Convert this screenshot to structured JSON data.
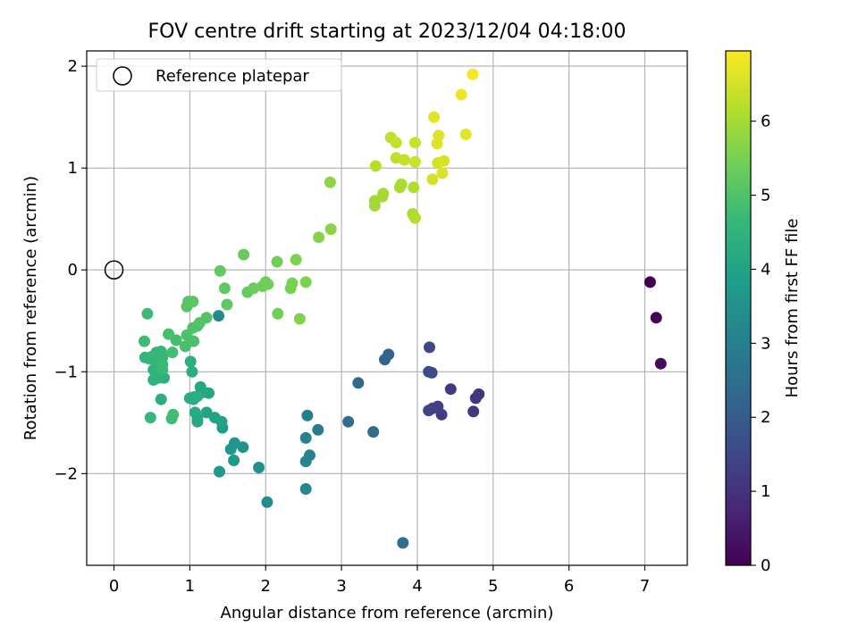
{
  "chart_data": {
    "type": "scatter",
    "title": "FOV centre drift starting at 2023/12/04 04:18:00",
    "xlabel": "Angular distance from reference (arcmin)",
    "ylabel": "Rotation from reference (arcmin)",
    "xlim": [
      -0.36,
      7.56
    ],
    "ylim": [
      -2.9,
      2.15
    ],
    "xticks": [
      0,
      1,
      2,
      3,
      4,
      5,
      6,
      7
    ],
    "yticks": [
      -2,
      -1,
      0,
      1,
      2
    ],
    "grid": true,
    "legend": {
      "placement": "top-left",
      "entries": [
        "Reference platepar"
      ]
    },
    "reference_point": {
      "x": 0,
      "y": 0,
      "label": "Reference platepar",
      "marker": "hollow-circle",
      "color": "#000000"
    },
    "colorbar": {
      "label": "Hours from first FF file",
      "colormap": "viridis",
      "range": [
        0,
        6.95
      ],
      "ticks": [
        0,
        1,
        2,
        3,
        4,
        5,
        6
      ],
      "stops": [
        "#440154",
        "#482878",
        "#3e4989",
        "#31688e",
        "#26828e",
        "#1f9e89",
        "#35b779",
        "#6ece58",
        "#b5de2b",
        "#fde725"
      ]
    },
    "series": [
      {
        "points": [
          [
            7.07,
            -0.12,
            0.0
          ],
          [
            7.15,
            -0.47,
            0.1
          ],
          [
            7.21,
            -0.92,
            0.2
          ],
          [
            4.81,
            -1.22,
            1.05
          ],
          [
            4.77,
            -1.26,
            1.1
          ],
          [
            4.74,
            -1.39,
            1.15
          ],
          [
            4.44,
            -1.17,
            1.2
          ],
          [
            4.32,
            -1.42,
            1.25
          ],
          [
            4.27,
            -1.34,
            1.3
          ],
          [
            4.2,
            -1.36,
            1.35
          ],
          [
            4.15,
            -1.38,
            1.4
          ],
          [
            4.16,
            -0.76,
            1.5
          ],
          [
            4.15,
            -1.0,
            1.55
          ],
          [
            4.19,
            -1.01,
            1.6
          ],
          [
            3.62,
            -0.83,
            2.2
          ],
          [
            3.57,
            -0.88,
            2.25
          ],
          [
            3.22,
            -1.11,
            2.4
          ],
          [
            3.42,
            -1.59,
            2.45
          ],
          [
            3.09,
            -1.49,
            2.5
          ],
          [
            3.81,
            -2.68,
            2.55
          ],
          [
            2.69,
            -1.57,
            2.9
          ],
          [
            2.55,
            -1.43,
            3.0
          ],
          [
            2.53,
            -1.65,
            3.05
          ],
          [
            2.58,
            -1.82,
            3.1
          ],
          [
            2.53,
            -1.88,
            3.15
          ],
          [
            2.53,
            -2.15,
            3.2
          ],
          [
            2.02,
            -2.28,
            3.35
          ],
          [
            1.91,
            -1.94,
            3.45
          ],
          [
            1.7,
            -1.74,
            3.55
          ],
          [
            1.59,
            -1.7,
            3.6
          ],
          [
            1.54,
            -1.76,
            3.65
          ],
          [
            1.58,
            -1.87,
            3.7
          ],
          [
            1.39,
            -1.98,
            3.75
          ],
          [
            1.38,
            -0.45,
            3.3
          ],
          [
            1.43,
            -1.55,
            3.9
          ],
          [
            1.42,
            -1.49,
            3.95
          ],
          [
            1.33,
            -1.45,
            4.0
          ],
          [
            1.22,
            -1.4,
            4.05
          ],
          [
            1.25,
            -1.21,
            4.05
          ],
          [
            1.18,
            -1.2,
            4.1
          ],
          [
            1.14,
            -1.15,
            4.1
          ],
          [
            1.1,
            -1.46,
            4.15
          ],
          [
            1.1,
            -1.49,
            4.15
          ],
          [
            1.07,
            -1.4,
            4.2
          ],
          [
            1.05,
            -1.27,
            4.2
          ],
          [
            1.0,
            -1.26,
            4.25
          ],
          [
            1.05,
            -1.25,
            4.25
          ],
          [
            1.1,
            -1.24,
            4.3
          ],
          [
            1.03,
            -1.0,
            4.3
          ],
          [
            1.01,
            -0.9,
            4.35
          ],
          [
            0.62,
            -1.27,
            4.35
          ],
          [
            0.66,
            -1.06,
            4.4
          ],
          [
            0.59,
            -1.06,
            4.45
          ],
          [
            0.52,
            -1.08,
            4.45
          ],
          [
            0.52,
            -0.98,
            4.5
          ],
          [
            0.55,
            -0.9,
            4.5
          ],
          [
            0.46,
            -0.87,
            4.55
          ],
          [
            0.41,
            -0.86,
            4.55
          ],
          [
            0.5,
            -0.85,
            4.6
          ],
          [
            0.56,
            -0.81,
            4.6
          ],
          [
            0.62,
            -0.8,
            4.65
          ],
          [
            0.64,
            -0.86,
            4.65
          ],
          [
            0.64,
            -0.93,
            4.7
          ],
          [
            0.64,
            -0.98,
            4.7
          ],
          [
            0.48,
            -1.45,
            4.6
          ],
          [
            0.4,
            -0.7,
            4.75
          ],
          [
            0.44,
            -0.43,
            4.75
          ],
          [
            0.78,
            -1.42,
            4.8
          ],
          [
            0.76,
            -1.46,
            4.8
          ],
          [
            0.77,
            -0.81,
            4.85
          ],
          [
            0.82,
            -0.69,
            4.85
          ],
          [
            0.72,
            -0.63,
            4.9
          ],
          [
            0.94,
            -0.75,
            4.9
          ],
          [
            0.96,
            -0.64,
            4.95
          ],
          [
            1.05,
            -0.7,
            4.95
          ],
          [
            1.04,
            -0.57,
            5.0
          ],
          [
            1.1,
            -0.55,
            5.0
          ],
          [
            1.13,
            -0.52,
            5.05
          ],
          [
            1.22,
            -0.47,
            5.05
          ],
          [
            0.98,
            -0.31,
            5.1
          ],
          [
            0.96,
            -0.36,
            5.1
          ],
          [
            1.04,
            -0.31,
            5.15
          ],
          [
            1.46,
            -0.18,
            5.2
          ],
          [
            1.49,
            -0.34,
            5.2
          ],
          [
            1.4,
            -0.01,
            5.25
          ],
          [
            1.71,
            0.15,
            5.3
          ],
          [
            1.76,
            -0.22,
            5.3
          ],
          [
            1.84,
            -0.18,
            5.35
          ],
          [
            1.96,
            -0.16,
            5.35
          ],
          [
            2.03,
            -0.14,
            5.4
          ],
          [
            2.0,
            -0.12,
            5.4
          ],
          [
            2.15,
            0.08,
            5.45
          ],
          [
            2.16,
            -0.43,
            5.45
          ],
          [
            2.33,
            -0.18,
            5.5
          ],
          [
            2.35,
            -0.13,
            5.5
          ],
          [
            2.4,
            0.1,
            5.55
          ],
          [
            2.53,
            -0.12,
            5.55
          ],
          [
            2.45,
            -0.48,
            5.6
          ],
          [
            2.7,
            0.32,
            5.65
          ],
          [
            2.85,
            0.86,
            5.75
          ],
          [
            2.86,
            0.4,
            5.7
          ],
          [
            3.44,
            0.63,
            5.95
          ],
          [
            3.44,
            0.68,
            5.95
          ],
          [
            3.54,
            0.72,
            6.0
          ],
          [
            3.55,
            0.75,
            6.0
          ],
          [
            3.77,
            0.81,
            6.05
          ],
          [
            3.79,
            0.84,
            6.05
          ],
          [
            3.95,
            0.81,
            6.1
          ],
          [
            3.94,
            0.55,
            6.1
          ],
          [
            3.97,
            0.51,
            6.15
          ],
          [
            3.45,
            1.02,
            6.2
          ],
          [
            3.65,
            1.3,
            6.3
          ],
          [
            3.72,
            1.25,
            6.35
          ],
          [
            3.72,
            1.1,
            6.3
          ],
          [
            3.83,
            1.08,
            6.35
          ],
          [
            3.97,
            1.06,
            6.4
          ],
          [
            3.97,
            1.25,
            6.4
          ],
          [
            4.2,
            0.89,
            6.5
          ],
          [
            4.27,
            1.05,
            6.5
          ],
          [
            4.35,
            1.07,
            6.55
          ],
          [
            4.33,
            0.95,
            6.55
          ],
          [
            4.26,
            1.24,
            6.6
          ],
          [
            4.28,
            1.32,
            6.6
          ],
          [
            4.22,
            1.5,
            6.65
          ],
          [
            4.64,
            1.33,
            6.7
          ],
          [
            4.58,
            1.72,
            6.8
          ],
          [
            4.73,
            1.92,
            6.9
          ]
        ]
      }
    ]
  }
}
